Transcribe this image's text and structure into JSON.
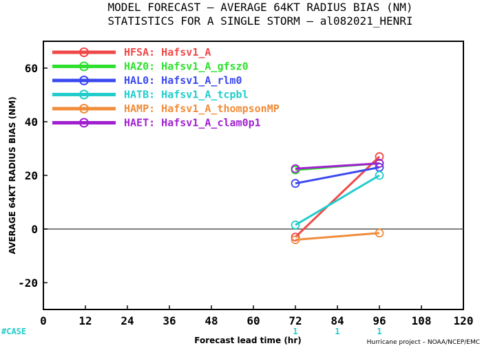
{
  "chart_data": {
    "type": "line",
    "title": "MODEL FORECAST – AVERAGE 64KT RADIUS BIAS (NM)",
    "subtitle": "STATISTICS FOR A SINGLE STORM – al082021_HENRI",
    "xlabel": "Forecast lead time (hr)",
    "ylabel": "AVERAGE 64KT RADIUS BIAS (NM)",
    "xlim": [
      0,
      120
    ],
    "ylim": [
      -30,
      70
    ],
    "xticks": [
      0,
      12,
      24,
      36,
      48,
      60,
      72,
      84,
      96,
      108,
      120
    ],
    "yticks": [
      -20,
      0,
      20,
      40,
      60
    ],
    "zero_line": true,
    "legend_position": "top-left",
    "series": [
      {
        "name": "HFSA: Hafsv1_A",
        "color": "#f04848",
        "x": [
          72,
          96
        ],
        "y": [
          -3,
          27
        ]
      },
      {
        "name": "HAZ0: Hafsv1_A_gfsz0",
        "color": "#2ee02e",
        "x": [
          72,
          96
        ],
        "y": [
          22,
          24.5
        ]
      },
      {
        "name": "HAL0: Hafsv1_A_rlm0",
        "color": "#3a48f0",
        "x": [
          72,
          96
        ],
        "y": [
          17,
          23
        ]
      },
      {
        "name": "HATB: Hafsv1_A_tcpbl",
        "color": "#22cccc",
        "x": [
          72,
          96
        ],
        "y": [
          1.5,
          20
        ]
      },
      {
        "name": "HAMP: Hafsv1_A_thompsonMP",
        "color": "#f08c3a",
        "x": [
          72,
          96
        ],
        "y": [
          -4,
          -1.5
        ]
      },
      {
        "name": "HAET: Hafsv1_A_clam0p1",
        "color": "#a020d0",
        "x": [
          72,
          96
        ],
        "y": [
          22.5,
          24.5
        ]
      }
    ],
    "case_counts": {
      "label": "#CASE",
      "color": "#22cccc",
      "x": [
        72,
        84,
        96
      ],
      "counts": [
        "1",
        "1",
        "1"
      ]
    },
    "credit": "Hurricane project – NOAA/NCEP/EMC"
  }
}
